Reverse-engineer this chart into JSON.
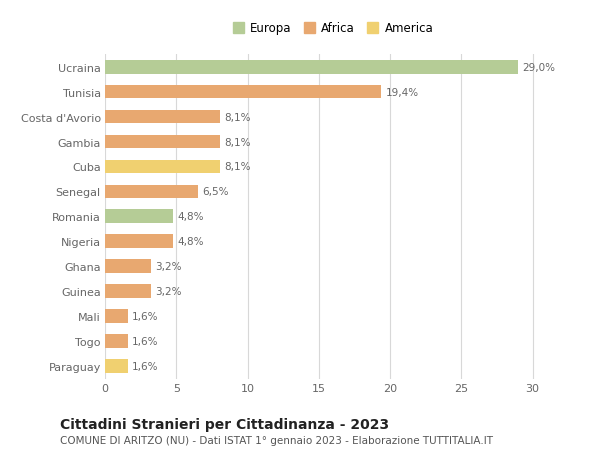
{
  "categories": [
    "Ucraina",
    "Tunisia",
    "Costa d'Avorio",
    "Gambia",
    "Cuba",
    "Senegal",
    "Romania",
    "Nigeria",
    "Ghana",
    "Guinea",
    "Mali",
    "Togo",
    "Paraguay"
  ],
  "values": [
    29.0,
    19.4,
    8.1,
    8.1,
    8.1,
    6.5,
    4.8,
    4.8,
    3.2,
    3.2,
    1.6,
    1.6,
    1.6
  ],
  "labels": [
    "29,0%",
    "19,4%",
    "8,1%",
    "8,1%",
    "8,1%",
    "6,5%",
    "4,8%",
    "4,8%",
    "3,2%",
    "3,2%",
    "1,6%",
    "1,6%",
    "1,6%"
  ],
  "colors": [
    "#b5cc96",
    "#e8a870",
    "#e8a870",
    "#e8a870",
    "#f0d070",
    "#e8a870",
    "#b5cc96",
    "#e8a870",
    "#e8a870",
    "#e8a870",
    "#e8a870",
    "#e8a870",
    "#f0d070"
  ],
  "legend_labels": [
    "Europa",
    "Africa",
    "America"
  ],
  "legend_colors": [
    "#b5cc96",
    "#e8a870",
    "#f0d070"
  ],
  "title": "Cittadini Stranieri per Cittadinanza - 2023",
  "subtitle": "COMUNE DI ARITZO (NU) - Dati ISTAT 1° gennaio 2023 - Elaborazione TUTTITALIA.IT",
  "xlim": [
    0,
    32
  ],
  "xticks": [
    0,
    5,
    10,
    15,
    20,
    25,
    30
  ],
  "bg_color": "#ffffff",
  "grid_color": "#d8d8d8",
  "bar_height": 0.55,
  "label_fontsize": 7.5,
  "ytick_fontsize": 8,
  "xtick_fontsize": 8,
  "title_fontsize": 10,
  "subtitle_fontsize": 7.5
}
